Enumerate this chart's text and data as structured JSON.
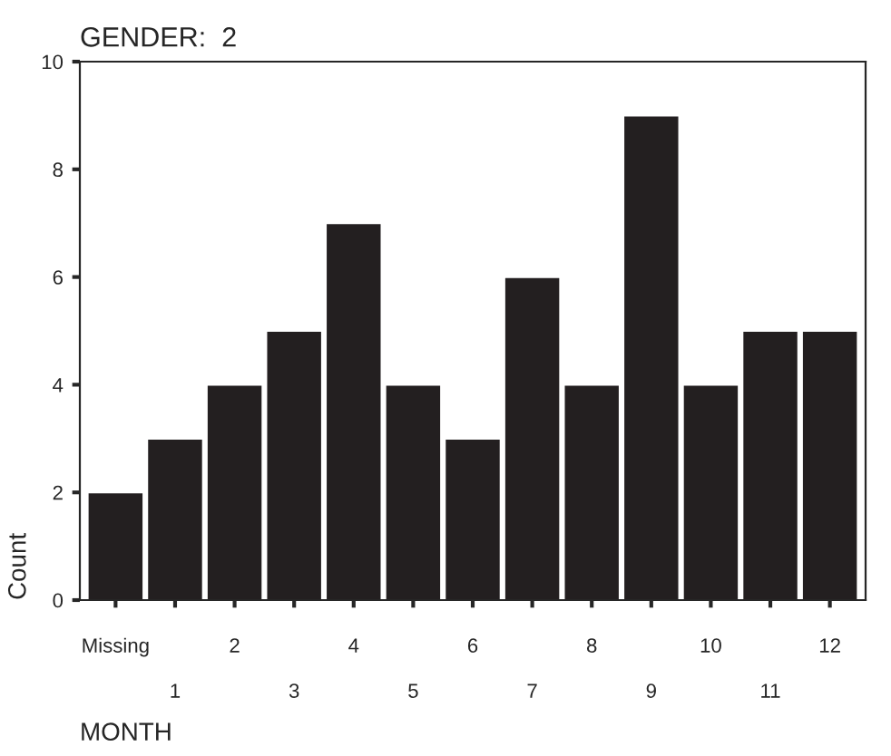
{
  "chart_data": {
    "type": "bar",
    "title": "GENDER:  2",
    "xlabel": "MONTH",
    "ylabel": "Count",
    "categories": [
      "Missing",
      "1",
      "2",
      "3",
      "4",
      "5",
      "6",
      "7",
      "8",
      "9",
      "10",
      "11",
      "12"
    ],
    "values": [
      2,
      3,
      4,
      5,
      7,
      4,
      3,
      6,
      4,
      9,
      4,
      5,
      5
    ],
    "color": "#231f20",
    "ylim": [
      0,
      10
    ],
    "yticks": [
      0,
      2,
      4,
      6,
      8,
      10
    ],
    "grid": false
  }
}
